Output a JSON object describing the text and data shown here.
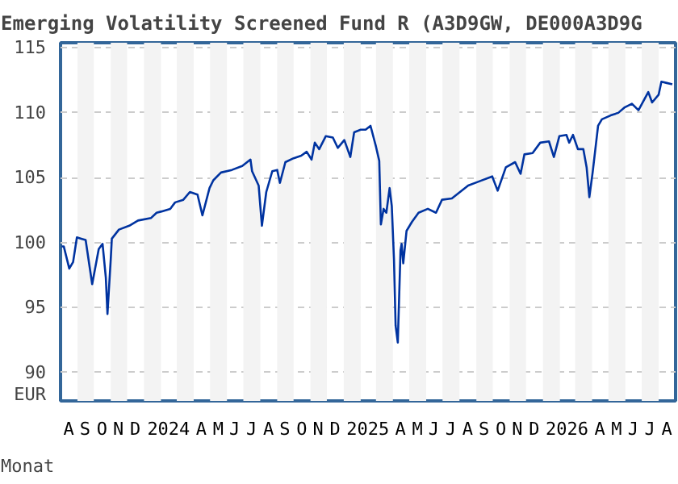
{
  "chart_data": {
    "type": "line",
    "title": "Emerging Volatility Screened Fund R (A3D9GW, DE000A3D9G",
    "xlabel": "Monat",
    "ylabel": "EUR",
    "x": [
      "2023-08-03",
      "2023-08-07",
      "2023-08-17",
      "2023-08-24",
      "2023-08-31",
      "2023-09-08",
      "2023-09-16",
      "2023-09-28",
      "2023-10-10",
      "2023-10-17",
      "2023-10-23",
      "2023-10-26",
      "2023-11-01",
      "2023-11-03",
      "2023-11-16",
      "2023-12-05",
      "2023-12-21",
      "2024-01-14",
      "2024-01-24",
      "2024-02-02",
      "2024-02-18",
      "2024-02-27",
      "2024-03-13",
      "2024-03-25",
      "2024-04-08",
      "2024-04-17",
      "2024-04-30",
      "2024-05-07",
      "2024-05-21",
      "2024-06-10",
      "2024-06-29",
      "2024-07-14",
      "2024-07-17",
      "2024-07-29",
      "2024-08-04",
      "2024-08-12",
      "2024-08-23",
      "2024-09-01",
      "2024-09-06",
      "2024-09-16",
      "2024-10-01",
      "2024-10-15",
      "2024-10-25",
      "2024-11-03",
      "2024-11-09",
      "2024-11-17",
      "2024-11-29",
      "2024-12-12",
      "2024-12-21",
      "2025-01-02",
      "2025-01-13",
      "2025-01-20",
      "2025-02-01",
      "2025-02-10",
      "2025-02-19",
      "2025-03-01",
      "2025-03-07",
      "2025-03-10",
      "2025-03-15",
      "2025-03-20",
      "2025-03-26",
      "2025-03-30",
      "2025-04-03",
      "2025-04-06",
      "2025-04-10",
      "2025-04-15",
      "2025-04-17",
      "2025-04-20",
      "2025-04-26",
      "2025-05-06",
      "2025-05-18",
      "2025-06-04",
      "2025-06-19",
      "2025-06-30",
      "2025-07-18",
      "2025-08-02",
      "2025-08-17",
      "2025-09-05",
      "2025-09-30",
      "2025-10-10",
      "2025-10-25",
      "2025-11-11",
      "2025-11-21",
      "2025-11-28",
      "2025-12-13",
      "2025-12-27",
      "2026-01-12",
      "2026-01-21",
      "2026-01-31",
      "2026-02-13",
      "2026-02-18",
      "2026-02-25",
      "2026-03-06",
      "2026-03-16",
      "2026-03-22",
      "2026-03-27",
      "2026-04-02",
      "2026-04-12",
      "2026-04-19",
      "2026-05-05",
      "2026-05-19",
      "2026-05-30",
      "2026-06-13",
      "2026-06-25",
      "2026-07-13",
      "2026-07-20",
      "2026-08-01",
      "2026-08-06",
      "2026-08-16",
      "2026-08-26"
    ],
    "series": [
      {
        "color": "#0033a0",
        "values": [
          99.7,
          99.7,
          98.0,
          98.5,
          100.4,
          100.3,
          100.2,
          96.8,
          99.5,
          99.9,
          97.3,
          94.5,
          98.7,
          100.3,
          101.0,
          101.3,
          101.7,
          101.9,
          102.3,
          102.4,
          102.6,
          103.1,
          103.3,
          103.9,
          103.7,
          102.1,
          104.2,
          104.8,
          105.4,
          105.6,
          105.9,
          106.4,
          105.5,
          104.4,
          101.3,
          103.9,
          105.5,
          105.6,
          104.6,
          106.2,
          106.5,
          106.7,
          107.0,
          106.4,
          107.7,
          107.2,
          108.2,
          108.1,
          107.3,
          107.9,
          106.6,
          108.5,
          108.7,
          108.7,
          109.0,
          107.4,
          106.3,
          101.4,
          102.6,
          102.3,
          104.2,
          102.8,
          98.7,
          93.6,
          92.3,
          99.4,
          99.9,
          98.4,
          100.9,
          101.6,
          102.3,
          102.6,
          102.3,
          103.3,
          103.4,
          103.9,
          104.4,
          104.7,
          105.1,
          104.0,
          105.8,
          106.2,
          105.3,
          106.8,
          106.9,
          107.7,
          107.8,
          106.6,
          108.2,
          108.3,
          107.7,
          108.3,
          107.2,
          107.2,
          105.8,
          103.5,
          105.4,
          109.0,
          109.5,
          109.8,
          110.0,
          110.4,
          110.7,
          110.2,
          111.6,
          110.8,
          111.4,
          112.4,
          112.3,
          112.2
        ]
      }
    ],
    "xlim": [
      "2023-08-01",
      "2026-09-01"
    ],
    "xticks": [
      {
        "value": "2023-08-16",
        "label": "A"
      },
      {
        "value": "2023-09-15",
        "label": "S"
      },
      {
        "value": "2023-10-16",
        "label": "O"
      },
      {
        "value": "2023-11-15",
        "label": "N"
      },
      {
        "value": "2023-12-16",
        "label": "D"
      },
      {
        "value": "2024-02-15",
        "label": "2024"
      },
      {
        "value": "2024-04-15",
        "label": "A"
      },
      {
        "value": "2024-05-16",
        "label": "M"
      },
      {
        "value": "2024-06-15",
        "label": "J"
      },
      {
        "value": "2024-07-16",
        "label": "J"
      },
      {
        "value": "2024-08-16",
        "label": "A"
      },
      {
        "value": "2024-09-15",
        "label": "S"
      },
      {
        "value": "2024-10-16",
        "label": "O"
      },
      {
        "value": "2024-11-15",
        "label": "N"
      },
      {
        "value": "2024-12-16",
        "label": "D"
      },
      {
        "value": "2025-02-14",
        "label": "2025"
      },
      {
        "value": "2025-04-15",
        "label": "A"
      },
      {
        "value": "2025-05-16",
        "label": "M"
      },
      {
        "value": "2025-06-15",
        "label": "J"
      },
      {
        "value": "2025-07-16",
        "label": "J"
      },
      {
        "value": "2025-08-16",
        "label": "A"
      },
      {
        "value": "2025-09-15",
        "label": "S"
      },
      {
        "value": "2025-10-16",
        "label": "O"
      },
      {
        "value": "2025-11-15",
        "label": "N"
      },
      {
        "value": "2025-12-16",
        "label": "D"
      },
      {
        "value": "2026-02-14",
        "label": "2026"
      },
      {
        "value": "2026-04-15",
        "label": "A"
      },
      {
        "value": "2026-05-16",
        "label": "M"
      },
      {
        "value": "2026-06-15",
        "label": "J"
      },
      {
        "value": "2026-07-16",
        "label": "J"
      },
      {
        "value": "2026-08-16",
        "label": "A"
      }
    ],
    "ylim": [
      87.8,
      115.4
    ],
    "yticks": [
      90,
      95,
      100,
      105,
      110,
      115
    ],
    "grid": "y",
    "line_style": "solid",
    "bands": [
      {
        "axis": "x",
        "from": "2023-09-01",
        "to": "2023-10-01",
        "color": "#f3f3f3"
      },
      {
        "axis": "x",
        "from": "2023-11-01",
        "to": "2023-12-01",
        "color": "#f3f3f3"
      },
      {
        "axis": "x",
        "from": "2024-01-01",
        "to": "2024-02-01",
        "color": "#f3f3f3"
      },
      {
        "axis": "x",
        "from": "2024-03-01",
        "to": "2024-04-01",
        "color": "#f3f3f3"
      },
      {
        "axis": "x",
        "from": "2024-05-01",
        "to": "2024-06-01",
        "color": "#f3f3f3"
      },
      {
        "axis": "x",
        "from": "2024-07-01",
        "to": "2024-08-01",
        "color": "#f3f3f3"
      },
      {
        "axis": "x",
        "from": "2024-09-01",
        "to": "2024-10-01",
        "color": "#f3f3f3"
      },
      {
        "axis": "x",
        "from": "2024-11-01",
        "to": "2024-12-01",
        "color": "#f3f3f3"
      },
      {
        "axis": "x",
        "from": "2025-01-01",
        "to": "2025-02-01",
        "color": "#f3f3f3"
      },
      {
        "axis": "x",
        "from": "2025-03-01",
        "to": "2025-04-01",
        "color": "#f3f3f3"
      },
      {
        "axis": "x",
        "from": "2025-05-01",
        "to": "2025-06-01",
        "color": "#f3f3f3"
      },
      {
        "axis": "x",
        "from": "2025-07-01",
        "to": "2025-08-01",
        "color": "#f3f3f3"
      },
      {
        "axis": "x",
        "from": "2025-09-01",
        "to": "2025-10-01",
        "color": "#f3f3f3"
      },
      {
        "axis": "x",
        "from": "2025-11-01",
        "to": "2025-12-01",
        "color": "#f3f3f3"
      },
      {
        "axis": "x",
        "from": "2026-01-01",
        "to": "2026-02-01",
        "color": "#f3f3f3"
      },
      {
        "axis": "x",
        "from": "2026-03-01",
        "to": "2026-04-01",
        "color": "#f3f3f3"
      },
      {
        "axis": "x",
        "from": "2026-05-01",
        "to": "2026-06-01",
        "color": "#f3f3f3"
      },
      {
        "axis": "x",
        "from": "2026-07-01",
        "to": "2026-08-01",
        "color": "#f3f3f3"
      }
    ]
  }
}
